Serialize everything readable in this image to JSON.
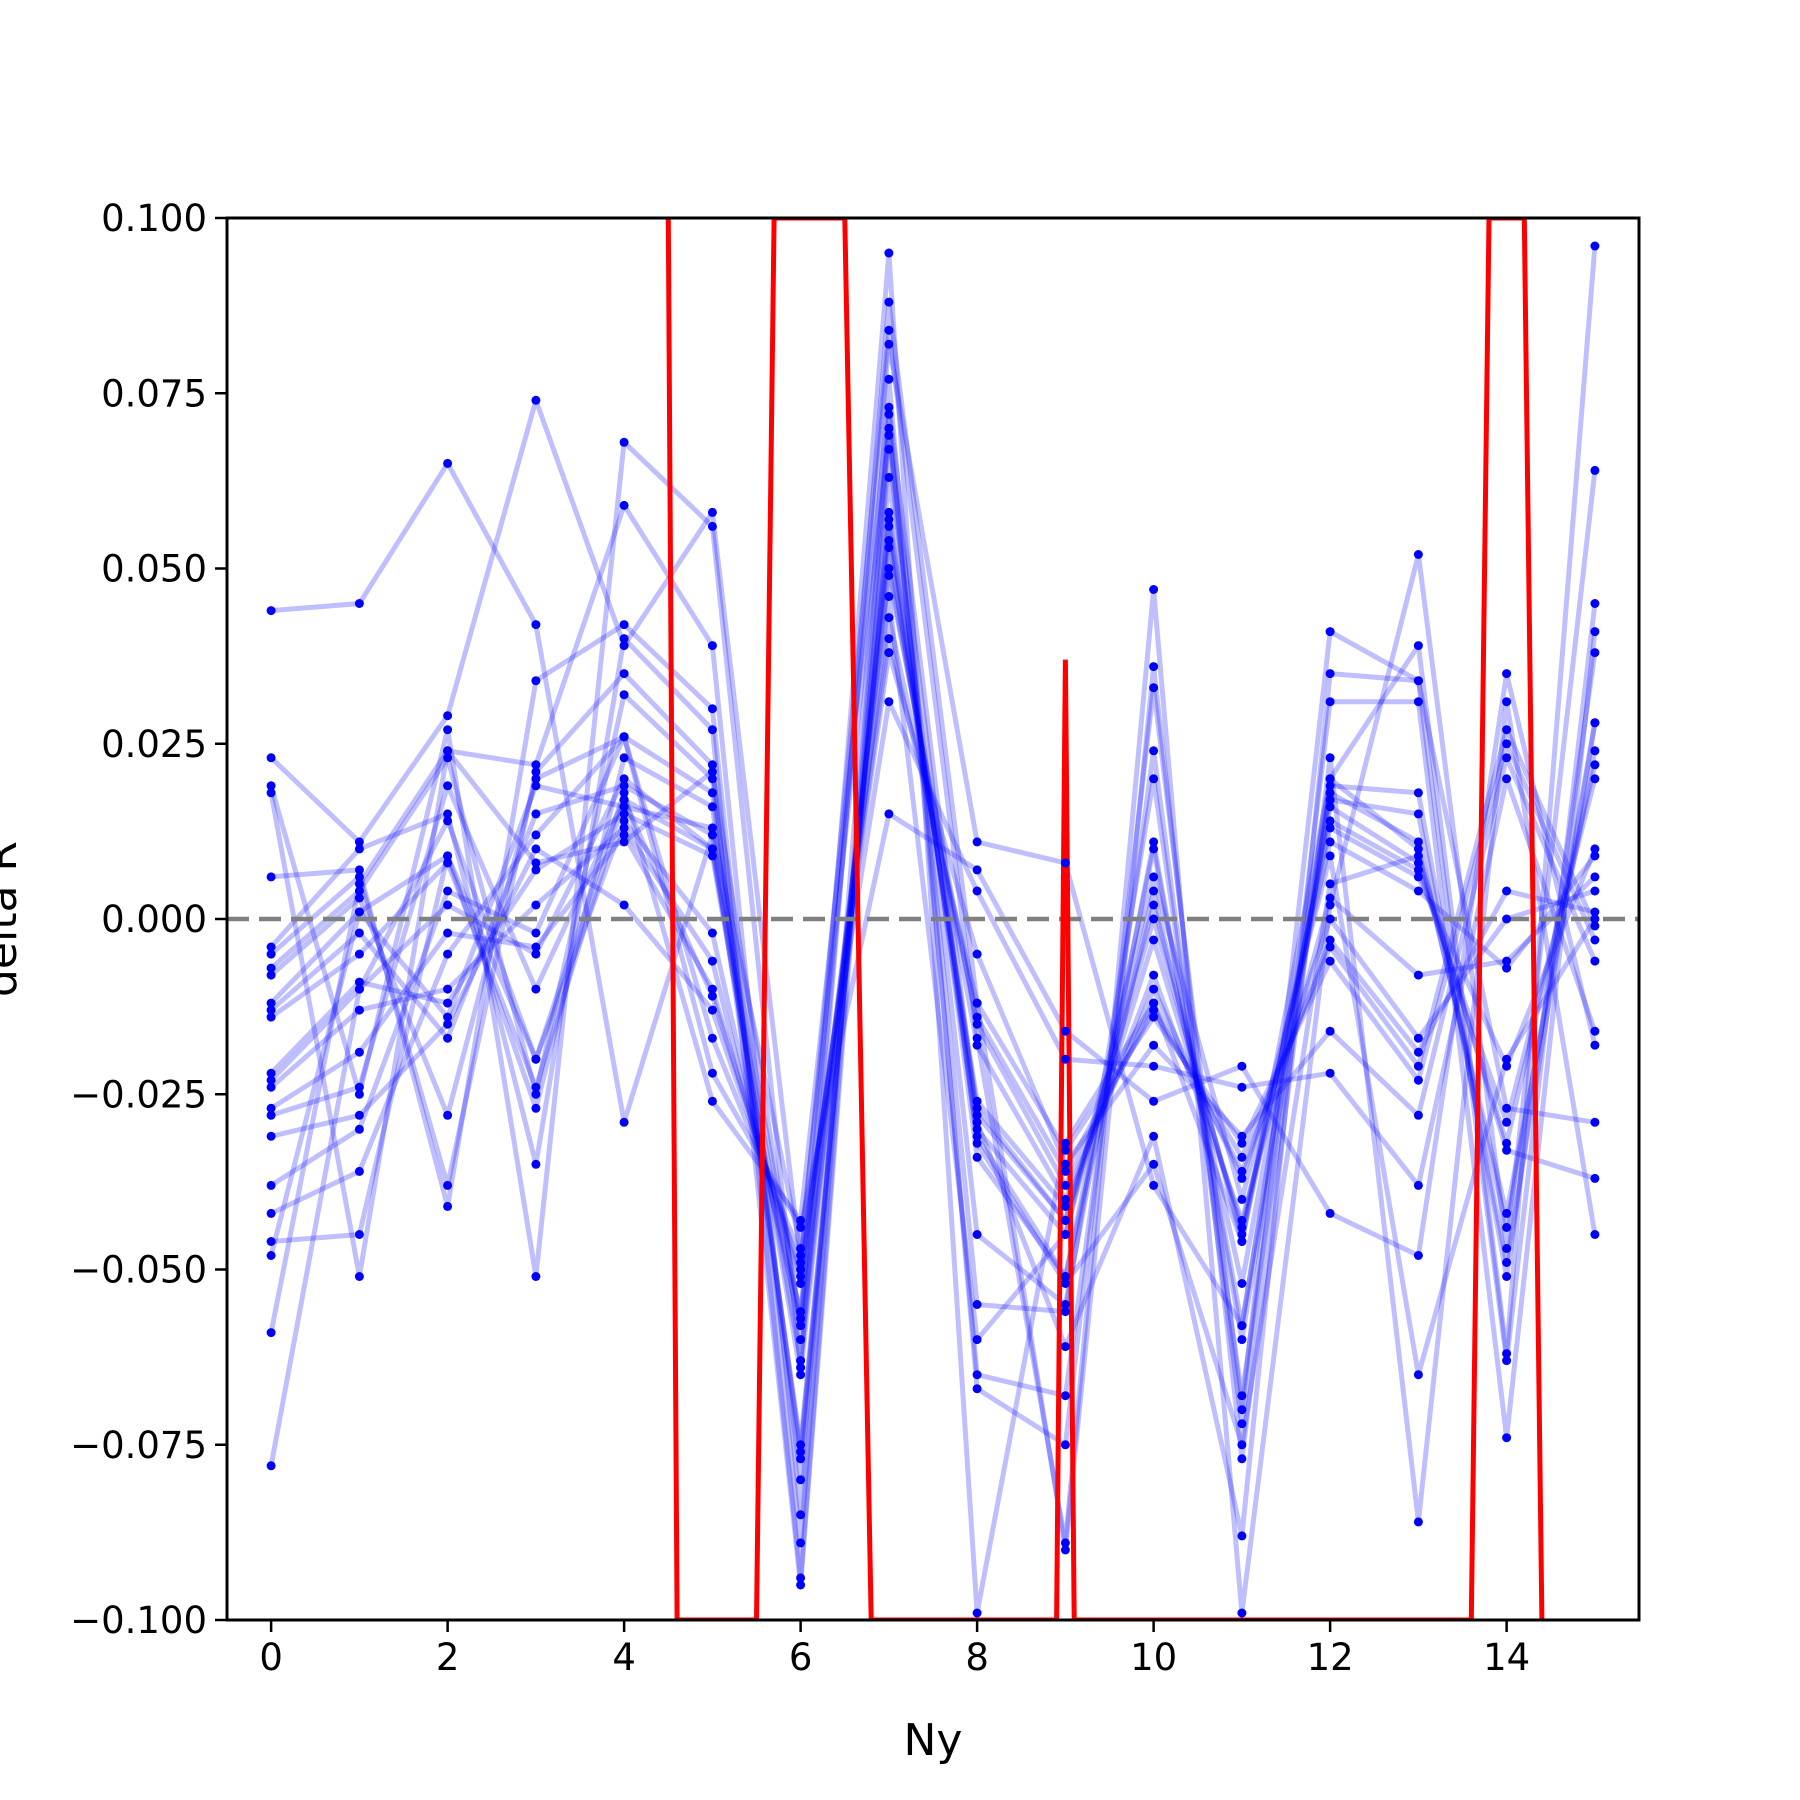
{
  "chart_data": {
    "type": "line",
    "title": "",
    "xlabel": "Ny",
    "ylabel": "delta R",
    "xlim": [
      -0.5,
      15.5
    ],
    "ylim": [
      -0.1,
      0.1
    ],
    "xticks": [
      0,
      2,
      4,
      6,
      8,
      10,
      12,
      14
    ],
    "xtick_labels": [
      "0",
      "2",
      "4",
      "6",
      "8",
      "10",
      "12",
      "14"
    ],
    "yticks": [
      -0.1,
      -0.075,
      -0.05,
      -0.025,
      0.0,
      0.025,
      0.05,
      0.075,
      0.1
    ],
    "ytick_labels": [
      "−0.100",
      "−0.075",
      "−0.050",
      "−0.025",
      "0.000",
      "0.025",
      "0.050",
      "0.075",
      "0.100"
    ],
    "grid": false,
    "legend": "none",
    "reference_line": {
      "y": 0.0,
      "style": "dashed",
      "color": "#808080"
    },
    "colors": {
      "traces": "#0000ff",
      "mean": "#ff0000",
      "frame": "#000000"
    },
    "x": [
      0,
      1,
      2,
      3,
      4,
      5,
      6,
      7,
      8,
      9,
      10,
      11,
      12,
      13,
      14,
      15
    ],
    "series": [
      {
        "values": [
          0.044,
          0.045,
          0.065,
          0.042,
          -0.029,
          0.012,
          -0.057,
          0.095,
          -0.099,
          -0.032,
          -0.012,
          -0.046,
          0.02,
          0.039,
          -0.062,
          0.096
        ]
      },
      {
        "values": [
          0.023,
          0.011,
          0.029,
          0.074,
          0.039,
          0.058,
          -0.049,
          0.084,
          -0.017,
          -0.089,
          0.047,
          -0.099,
          0.002,
          0.052,
          -0.047,
          0.064
        ]
      },
      {
        "values": [
          0.019,
          -0.025,
          0.027,
          -0.051,
          0.068,
          0.056,
          -0.064,
          0.088,
          -0.012,
          -0.09,
          0.036,
          -0.077,
          0.023,
          -0.086,
          0.031,
          -0.045
        ]
      },
      {
        "values": [
          0.018,
          -0.051,
          0.024,
          0.022,
          0.059,
          0.039,
          -0.085,
          0.077,
          -0.067,
          -0.075,
          0.033,
          -0.07,
          0.041,
          0.034,
          -0.063,
          0.045
        ]
      },
      {
        "values": [
          0.006,
          0.007,
          -0.041,
          0.034,
          0.042,
          0.03,
          -0.089,
          0.072,
          -0.065,
          -0.068,
          0.024,
          -0.072,
          0.031,
          0.031,
          -0.074,
          0.041
        ]
      },
      {
        "values": [
          -0.004,
          0.01,
          0.015,
          -0.035,
          0.04,
          0.027,
          -0.094,
          0.07,
          -0.055,
          -0.056,
          0.02,
          -0.068,
          0.019,
          0.018,
          -0.051,
          0.038
        ]
      },
      {
        "values": [
          -0.005,
          0.006,
          -0.038,
          0.021,
          0.035,
          0.022,
          -0.095,
          0.067,
          -0.045,
          -0.055,
          0.011,
          -0.06,
          0.017,
          0.015,
          -0.049,
          0.028
        ]
      },
      {
        "values": [
          -0.007,
          0.004,
          0.023,
          -0.025,
          0.032,
          0.02,
          -0.08,
          0.063,
          -0.034,
          -0.051,
          0.01,
          -0.058,
          0.02,
          0.01,
          -0.042,
          0.024
        ]
      },
      {
        "values": [
          -0.008,
          0.003,
          -0.028,
          0.02,
          0.026,
          0.018,
          -0.077,
          0.058,
          -0.031,
          -0.051,
          0.004,
          -0.052,
          0.016,
          0.008,
          -0.032,
          0.022
        ]
      },
      {
        "values": [
          -0.012,
          0.001,
          0.009,
          -0.027,
          0.023,
          0.016,
          -0.076,
          0.057,
          -0.03,
          -0.045,
          0.002,
          -0.046,
          0.014,
          0.007,
          -0.029,
          0.02
        ]
      },
      {
        "values": [
          -0.013,
          -0.002,
          -0.017,
          0.015,
          0.019,
          0.012,
          -0.075,
          0.056,
          -0.028,
          -0.043,
          0.0,
          -0.045,
          0.013,
          0.006,
          -0.021,
          0.01
        ]
      },
      {
        "values": [
          -0.014,
          -0.005,
          0.008,
          -0.024,
          0.017,
          0.01,
          -0.065,
          0.054,
          -0.027,
          -0.043,
          -0.003,
          -0.044,
          0.011,
          0.004,
          -0.007,
          0.009
        ]
      },
      {
        "values": [
          -0.022,
          -0.009,
          -0.012,
          0.007,
          0.015,
          0.009,
          -0.063,
          0.053,
          -0.026,
          -0.041,
          -0.008,
          -0.043,
          0.003,
          -0.008,
          -0.006,
          0.006
        ]
      },
      {
        "values": [
          -0.023,
          -0.01,
          0.014,
          -0.02,
          0.014,
          -0.002,
          -0.058,
          0.05,
          -0.018,
          -0.04,
          -0.01,
          -0.037,
          0.0,
          -0.017,
          0.0,
          0.004
        ]
      },
      {
        "values": [
          -0.024,
          -0.013,
          -0.01,
          0.002,
          0.013,
          -0.006,
          -0.056,
          0.049,
          -0.015,
          -0.038,
          -0.012,
          -0.036,
          -0.003,
          -0.019,
          0.004,
          0.001
        ]
      },
      {
        "values": [
          -0.027,
          -0.019,
          -0.002,
          -0.004,
          0.012,
          -0.01,
          -0.052,
          0.043,
          -0.014,
          -0.036,
          -0.013,
          -0.034,
          -0.004,
          -0.021,
          0.027,
          -0.001
        ]
      },
      {
        "values": [
          -0.028,
          -0.024,
          0.019,
          -0.01,
          0.017,
          -0.011,
          -0.051,
          0.04,
          -0.012,
          -0.033,
          -0.014,
          -0.032,
          -0.006,
          -0.023,
          0.025,
          -0.003
        ]
      },
      {
        "values": [
          -0.031,
          -0.028,
          -0.015,
          0.01,
          0.002,
          -0.013,
          -0.05,
          0.038,
          -0.005,
          -0.035,
          -0.018,
          -0.031,
          -0.016,
          -0.028,
          0.023,
          -0.006
        ]
      },
      {
        "values": [
          -0.038,
          -0.03,
          0.004,
          -0.002,
          0.026,
          -0.017,
          -0.048,
          0.031,
          0.004,
          -0.02,
          -0.021,
          -0.024,
          -0.022,
          -0.038,
          0.02,
          -0.016
        ]
      },
      {
        "values": [
          -0.042,
          -0.036,
          -0.005,
          0.012,
          0.026,
          -0.022,
          -0.044,
          0.015,
          0.007,
          -0.016,
          -0.026,
          -0.021,
          -0.042,
          -0.048,
          0.035,
          -0.018
        ]
      },
      {
        "values": [
          -0.046,
          -0.045,
          0.009,
          -0.02,
          0.018,
          -0.026,
          -0.043,
          0.073,
          -0.029,
          -0.061,
          -0.031,
          -0.088,
          0.035,
          0.034,
          -0.027,
          -0.029
        ]
      },
      {
        "values": [
          -0.048,
          0.001,
          -0.014,
          0.019,
          0.016,
          0.013,
          -0.047,
          0.069,
          -0.032,
          -0.052,
          -0.035,
          -0.075,
          0.005,
          0.009,
          -0.033,
          -0.037
        ]
      },
      {
        "values": [
          -0.059,
          0.005,
          0.024,
          0.008,
          0.011,
          0.021,
          -0.058,
          0.082,
          0.011,
          0.008,
          -0.038,
          -0.058,
          0.018,
          0.011,
          -0.044,
          0.028
        ]
      },
      {
        "values": [
          -0.078,
          -0.01,
          0.002,
          -0.005,
          0.02,
          0.01,
          -0.06,
          0.046,
          -0.06,
          -0.045,
          0.006,
          -0.04,
          0.009,
          -0.065,
          -0.02,
          0.0
        ]
      }
    ],
    "mean_line": {
      "name": "",
      "points": [
        [
          4.5,
          0.1
        ],
        [
          4.6,
          -0.1
        ],
        [
          5.5,
          -0.1
        ],
        [
          5.7,
          0.1
        ],
        [
          6.5,
          0.1
        ],
        [
          6.8,
          -0.1
        ],
        [
          8.9,
          -0.1
        ],
        [
          9.0,
          0.037
        ],
        [
          9.1,
          -0.1
        ],
        [
          13.6,
          -0.1
        ],
        [
          13.8,
          0.1
        ],
        [
          14.2,
          0.1
        ],
        [
          14.4,
          -0.1
        ]
      ]
    }
  }
}
